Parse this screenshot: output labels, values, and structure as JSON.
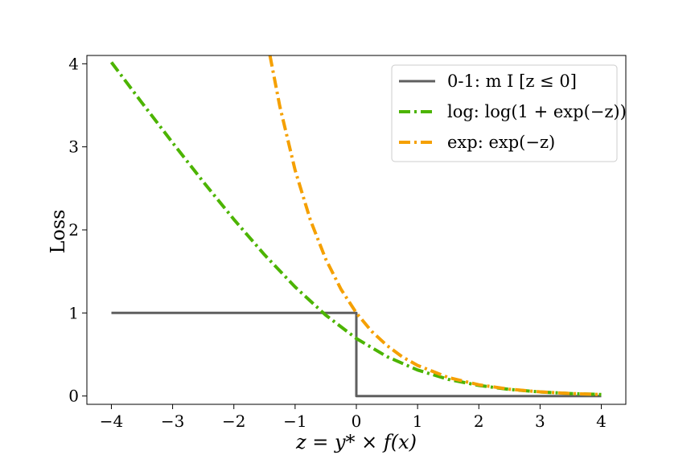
{
  "chart_data": {
    "type": "line",
    "xlabel": "z = y* × f(x)",
    "ylabel": "Loss",
    "xlim": [
      -4.4,
      4.4
    ],
    "ylim": [
      -0.1,
      4.1
    ],
    "xticks": [
      -4,
      -3,
      -2,
      -1,
      0,
      1,
      2,
      3,
      4
    ],
    "xtick_labels": [
      "−4",
      "−3",
      "−2",
      "−1",
      "0",
      "1",
      "2",
      "3",
      "4"
    ],
    "yticks": [
      0,
      1,
      2,
      3,
      4
    ],
    "ytick_labels": [
      "0",
      "1",
      "2",
      "3",
      "4"
    ],
    "grid": false,
    "legend_position": "top-right",
    "series": [
      {
        "name": "0-1: m I [z ≤ 0]",
        "style": "solid",
        "color": "#5f5f5f",
        "x": [
          -4,
          0,
          0,
          4
        ],
        "y": [
          1,
          1,
          0,
          0
        ]
      },
      {
        "name": "log: log(1 + exp(−z))",
        "style": "dashdot",
        "color": "#4cb400",
        "x": [
          -4,
          -3.5,
          -3,
          -2.5,
          -2,
          -1.5,
          -1,
          -0.5,
          0,
          0.5,
          1,
          1.5,
          2,
          2.5,
          3,
          3.5,
          4
        ],
        "y": [
          4.018,
          3.53,
          3.049,
          2.579,
          2.127,
          1.701,
          1.313,
          0.974,
          0.693,
          0.474,
          0.313,
          0.201,
          0.127,
          0.079,
          0.049,
          0.03,
          0.018
        ]
      },
      {
        "name": "exp: exp(−z)",
        "style": "dashdot",
        "color": "#f5a000",
        "x": [
          -1.41,
          -1.25,
          -1,
          -0.75,
          -0.5,
          -0.25,
          0,
          0.25,
          0.5,
          0.75,
          1,
          1.5,
          2,
          2.5,
          3,
          3.5,
          4
        ],
        "y": [
          4.1,
          3.49,
          2.718,
          2.117,
          1.649,
          1.284,
          1.0,
          0.779,
          0.607,
          0.472,
          0.368,
          0.223,
          0.135,
          0.082,
          0.05,
          0.03,
          0.018
        ]
      }
    ]
  }
}
